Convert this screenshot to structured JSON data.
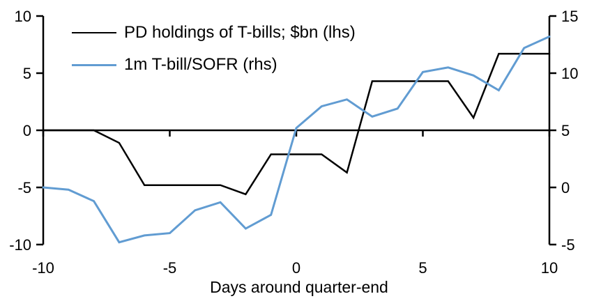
{
  "chart_data": {
    "type": "line",
    "title": "",
    "xlabel": "Days around quarter-end",
    "legend_position": "top-left-inside",
    "grid": false,
    "x": [
      -10,
      -9,
      -8,
      -7,
      -6,
      -5,
      -4,
      -3,
      -2,
      -1,
      0,
      1,
      2,
      3,
      4,
      5,
      6,
      7,
      8,
      9,
      10
    ],
    "series": [
      {
        "name": "PD holdings of T-bills; $bn (lhs)",
        "axis": "left",
        "color": "#000000",
        "stroke_width": 2.5,
        "values": [
          0,
          0,
          0,
          -1.1,
          -4.8,
          -4.8,
          -4.8,
          -4.8,
          -5.6,
          -2.1,
          -2.1,
          -2.1,
          -3.7,
          4.3,
          4.3,
          4.3,
          4.3,
          1.1,
          6.7,
          6.7,
          6.7
        ]
      },
      {
        "name": "1m T-bill/SOFR (rhs)",
        "axis": "right",
        "color": "#619CD2",
        "stroke_width": 3,
        "values": [
          0,
          -0.2,
          -1.2,
          -4.8,
          -4.2,
          -4.0,
          -2.0,
          -1.3,
          -3.6,
          -2.4,
          5.2,
          7.1,
          7.7,
          6.2,
          6.9,
          10.1,
          10.5,
          9.8,
          8.5,
          12.2,
          13.2
        ]
      }
    ],
    "left_axis": {
      "min": -10,
      "max": 10,
      "ticks": [
        10,
        5,
        0,
        -5,
        -10
      ]
    },
    "right_axis": {
      "min": -5,
      "max": 15,
      "ticks": [
        15,
        10,
        5,
        0,
        -5
      ]
    },
    "x_axis": {
      "min": -10,
      "max": 10,
      "ticks": [
        -10,
        -5,
        0,
        5,
        10
      ],
      "baseline_at_left_value": 0
    },
    "axis_color": "#000000",
    "tick_font_size": 22,
    "xlabel_font_size": 23
  }
}
